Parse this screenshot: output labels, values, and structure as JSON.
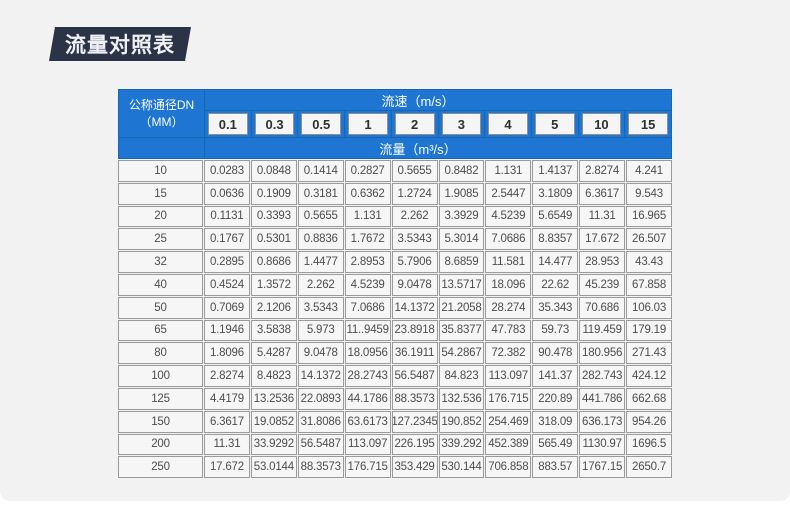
{
  "page": {
    "title": "流量对照表",
    "background_color": "#f2f2f3",
    "accent_blue": "#1e76d2",
    "badge_color": "#2b3447"
  },
  "table": {
    "corner": {
      "line1": "公称通径DN",
      "line2": "（MM）"
    },
    "velocity_band_label": "流速（m/s）",
    "flow_band_label": "流量（m³/s）",
    "velocity_columns": [
      "0.1",
      "0.3",
      "0.5",
      "1",
      "2",
      "3",
      "4",
      "5",
      "10",
      "15"
    ],
    "rows": [
      {
        "dn": "10",
        "values": [
          "0.0283",
          "0.0848",
          "0.1414",
          "0.2827",
          "0.5655",
          "0.8482",
          "1.131",
          "1.4137",
          "2.8274",
          "4.241"
        ]
      },
      {
        "dn": "15",
        "values": [
          "0.0636",
          "0.1909",
          "0.3181",
          "0.6362",
          "1.2724",
          "1.9085",
          "2.5447",
          "3.1809",
          "6.3617",
          "9.543"
        ]
      },
      {
        "dn": "20",
        "values": [
          "0.1131",
          "0.3393",
          "0.5655",
          "1.131",
          "2.262",
          "3.3929",
          "4.5239",
          "5.6549",
          "11.31",
          "16.965"
        ]
      },
      {
        "dn": "25",
        "values": [
          "0.1767",
          "0.5301",
          "0.8836",
          "1.7672",
          "3.5343",
          "5.3014",
          "7.0686",
          "8.8357",
          "17.672",
          "26.507"
        ]
      },
      {
        "dn": "32",
        "values": [
          "0.2895",
          "0.8686",
          "1.4477",
          "2.8953",
          "5.7906",
          "8.6859",
          "11.581",
          "14.477",
          "28.953",
          "43.43"
        ]
      },
      {
        "dn": "40",
        "values": [
          "0.4524",
          "1.3572",
          "2.262",
          "4.5239",
          "9.0478",
          "13.5717",
          "18.096",
          "22.62",
          "45.239",
          "67.858"
        ]
      },
      {
        "dn": "50",
        "values": [
          "0.7069",
          "2.1206",
          "3.5343",
          "7.0686",
          "14.1372",
          "21.2058",
          "28.274",
          "35.343",
          "70.686",
          "106.03"
        ]
      },
      {
        "dn": "65",
        "values": [
          "1.1946",
          "3.5838",
          "5.973",
          "11..9459",
          "23.8918",
          "35.8377",
          "47.783",
          "59.73",
          "119.459",
          "179.19"
        ]
      },
      {
        "dn": "80",
        "values": [
          "1.8096",
          "5.4287",
          "9.0478",
          "18.0956",
          "36.1911",
          "54.2867",
          "72.382",
          "90.478",
          "180.956",
          "271.43"
        ]
      },
      {
        "dn": "100",
        "values": [
          "2.8274",
          "8.4823",
          "14.1372",
          "28.2743",
          "56.5487",
          "84.823",
          "113.097",
          "141.37",
          "282.743",
          "424.12"
        ]
      },
      {
        "dn": "125",
        "values": [
          "4.4179",
          "13.2536",
          "22.0893",
          "44.1786",
          "88.3573",
          "132.536",
          "176.715",
          "220.89",
          "441.786",
          "662.68"
        ]
      },
      {
        "dn": "150",
        "values": [
          "6.3617",
          "19.0852",
          "31.8086",
          "63.6173",
          "127.2345",
          "190.852",
          "254.469",
          "318.09",
          "636.173",
          "954.26"
        ]
      },
      {
        "dn": "200",
        "values": [
          "11.31",
          "33.9292",
          "56.5487",
          "113.097",
          "226.195",
          "339.292",
          "452.389",
          "565.49",
          "1130.97",
          "1696.5"
        ]
      },
      {
        "dn": "250",
        "values": [
          "17.672",
          "53.0144",
          "88.3573",
          "176.715",
          "353.429",
          "530.144",
          "706.858",
          "883.57",
          "1767.15",
          "2650.7"
        ]
      }
    ]
  }
}
